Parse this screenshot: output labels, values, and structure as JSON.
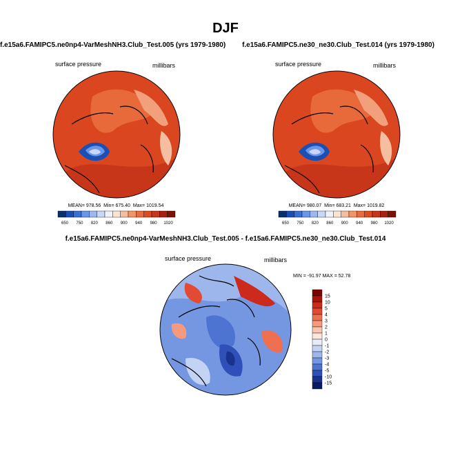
{
  "figure_title": "DJF",
  "chart_data": [
    {
      "type": "heatmap",
      "projection": "north polar stereographic",
      "title": "f.e15a6.FAMIPC5.ne0np4-VarMeshNH3.Club_Test.005 (yrs 1979-1980)",
      "left_label": "surface pressure",
      "right_label": "millibars",
      "stats": {
        "mean_label": "MEAN=",
        "mean": "978.56",
        "min_label": "Min=",
        "min": "675.40",
        "max_label": "Max=",
        "max": "1019.54"
      },
      "colorbar": {
        "levels": [
          "650",
          "750",
          "820",
          "860",
          "900",
          "940",
          "980",
          "1020"
        ],
        "colors": [
          "#08306b",
          "#1c4fb4",
          "#3b6fd8",
          "#6a95e8",
          "#9bb8f0",
          "#c9d8f6",
          "#eef2fb",
          "#fbe4d7",
          "#f6bea0",
          "#f09669",
          "#ea6c3d",
          "#dc4b22",
          "#c8361a",
          "#a6230f",
          "#7a1206"
        ]
      }
    },
    {
      "type": "heatmap",
      "projection": "north polar stereographic",
      "title": "f.e15a6.FAMIPC5.ne30_ne30.Club_Test.014 (yrs 1979-1980)",
      "left_label": "surface pressure",
      "right_label": "millibars",
      "stats": {
        "mean_label": "MEAN=",
        "mean": "980.07",
        "min_label": "Min=",
        "min": "683.21",
        "max_label": "Max=",
        "max": "1019.82"
      },
      "colorbar": {
        "levels": [
          "650",
          "750",
          "820",
          "860",
          "900",
          "940",
          "980",
          "1020"
        ],
        "colors": [
          "#08306b",
          "#1c4fb4",
          "#3b6fd8",
          "#6a95e8",
          "#9bb8f0",
          "#c9d8f6",
          "#eef2fb",
          "#fbe4d7",
          "#f6bea0",
          "#f09669",
          "#ea6c3d",
          "#dc4b22",
          "#c8361a",
          "#a6230f",
          "#7a1206"
        ]
      }
    },
    {
      "type": "heatmap",
      "projection": "north polar stereographic",
      "title": "f.e15a6.FAMIPC5.ne0np4-VarMeshNH3.Club_Test.005 - f.e15a6.FAMIPC5.ne30_ne30.Club_Test.014",
      "left_label": "surface pressure",
      "right_label": "millibars",
      "minmax_label": "MIN = -91.97  MAX =  52.78",
      "colorbar": {
        "levels": [
          "15",
          "10",
          "5",
          "4",
          "3",
          "2",
          "1",
          "0",
          "-1",
          "-2",
          "-3",
          "-4",
          "-5",
          "-10",
          "-15"
        ],
        "colors": [
          "#7a0403",
          "#a8150c",
          "#cc2a1d",
          "#e24a33",
          "#ef6f51",
          "#f59a7e",
          "#fac4ae",
          "#fde6dc",
          "#e6ecfa",
          "#c2d3f3",
          "#9db7ec",
          "#7597e1",
          "#4e74d2",
          "#2f50b8",
          "#19328e",
          "#0b1c66"
        ]
      }
    }
  ]
}
